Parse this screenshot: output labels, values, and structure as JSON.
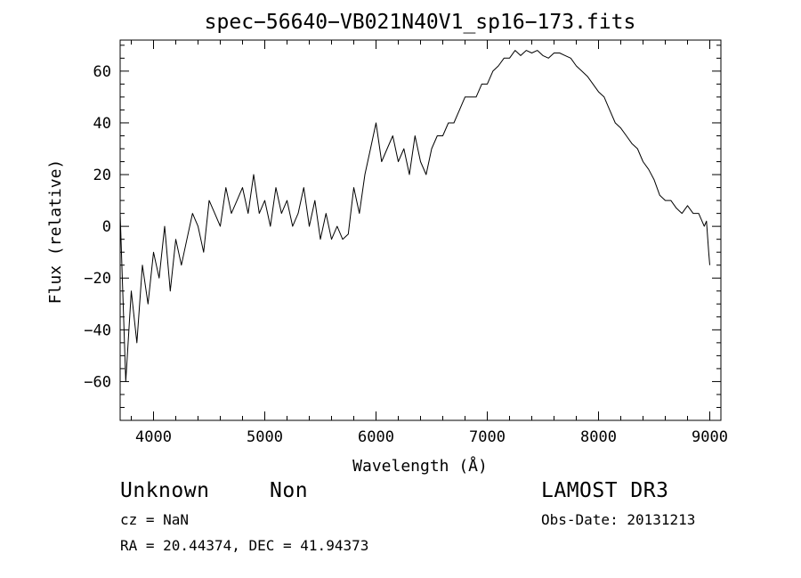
{
  "chart_data": {
    "type": "line",
    "title": "spec−56640−VB021N40V1_sp16−173.fits",
    "xlabel": "Wavelength (Å)",
    "ylabel": "Flux (relative)",
    "xlim": [
      3700,
      9100
    ],
    "ylim": [
      -75,
      72
    ],
    "xticks": [
      4000,
      5000,
      6000,
      7000,
      8000,
      9000
    ],
    "yticks": [
      -60,
      -40,
      -20,
      0,
      20,
      40,
      60
    ],
    "xtick_labels": [
      "4000",
      "5000",
      "6000",
      "7000",
      "8000",
      "9000"
    ],
    "ytick_labels": [
      "−60",
      "−40",
      "−20",
      "0",
      "20",
      "40",
      "60"
    ],
    "grid": false,
    "series": [
      {
        "line_color": "#000000",
        "x": [
          3700,
          3750,
          3800,
          3850,
          3900,
          3950,
          4000,
          4050,
          4100,
          4150,
          4200,
          4250,
          4300,
          4350,
          4400,
          4450,
          4500,
          4550,
          4600,
          4650,
          4700,
          4750,
          4800,
          4850,
          4900,
          4950,
          5000,
          5050,
          5100,
          5150,
          5200,
          5250,
          5300,
          5350,
          5400,
          5450,
          5500,
          5550,
          5600,
          5650,
          5700,
          5750,
          5800,
          5850,
          5900,
          5950,
          6000,
          6050,
          6100,
          6150,
          6200,
          6250,
          6300,
          6350,
          6400,
          6450,
          6500,
          6550,
          6600,
          6650,
          6700,
          6750,
          6800,
          6850,
          6900,
          6950,
          7000,
          7050,
          7100,
          7150,
          7200,
          7250,
          7300,
          7350,
          7400,
          7450,
          7500,
          7550,
          7600,
          7650,
          7700,
          7750,
          7800,
          7850,
          7900,
          7950,
          8000,
          8050,
          8100,
          8150,
          8200,
          8250,
          8300,
          8350,
          8400,
          8450,
          8500,
          8550,
          8600,
          8650,
          8700,
          8750,
          8800,
          8850,
          8900,
          8950,
          8970,
          8990,
          9000
        ],
        "values": [
          5,
          -60,
          -25,
          -45,
          -15,
          -30,
          -10,
          -20,
          0,
          -25,
          -5,
          -15,
          -5,
          5,
          0,
          -10,
          10,
          5,
          0,
          15,
          5,
          10,
          15,
          5,
          20,
          5,
          10,
          0,
          15,
          5,
          10,
          0,
          5,
          15,
          0,
          10,
          -5,
          5,
          -5,
          0,
          -5,
          -3,
          15,
          5,
          20,
          30,
          40,
          25,
          30,
          35,
          25,
          30,
          20,
          35,
          25,
          20,
          30,
          35,
          35,
          40,
          40,
          45,
          50,
          50,
          50,
          55,
          55,
          60,
          62,
          65,
          65,
          68,
          66,
          68,
          67,
          68,
          66,
          65,
          67,
          67,
          66,
          65,
          62,
          60,
          58,
          55,
          52,
          50,
          45,
          40,
          38,
          35,
          32,
          30,
          25,
          22,
          18,
          12,
          10,
          10,
          7,
          5,
          8,
          5,
          5,
          0,
          2,
          -10,
          -15
        ]
      }
    ]
  },
  "footer": {
    "object_class": "Unknown",
    "object_subclass": "Non",
    "redshift": "cz = NaN",
    "coordinates": "RA =  20.44374, DEC =  41.94373",
    "survey": "LAMOST DR3",
    "obs_date": "Obs-Date: 20131213"
  }
}
